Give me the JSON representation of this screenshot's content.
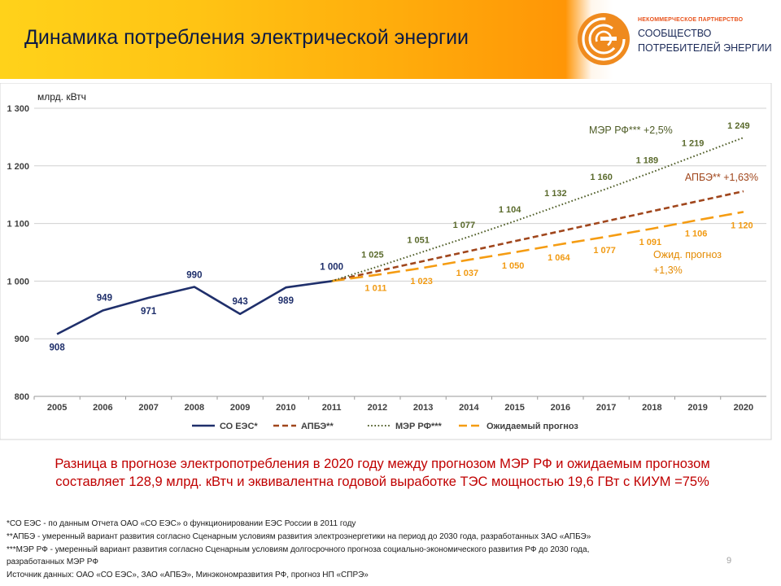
{
  "header": {
    "title": "Динамика потребления электрической энергии",
    "org_small": "НЕКОММЕРЧЕСКОЕ ПАРТНЕРСТВО",
    "org_line1": "СООБЩЕСТВО",
    "org_line2": "ПОТРЕБИТЕЛЕЙ ЭНЕРГИИ",
    "logo_icon": "energy-ring-logo-icon"
  },
  "chart_data": {
    "type": "line",
    "ylabel": "млрд. кВтч",
    "ylim": [
      800,
      1300
    ],
    "yticks": [
      800,
      900,
      1000,
      1100,
      1200,
      1300
    ],
    "ytick_labels": [
      "800",
      "900",
      "1 000",
      "1 100",
      "1 200",
      "1 300"
    ],
    "categories": [
      "2005",
      "2006",
      "2007",
      "2008",
      "2009",
      "2010",
      "2011",
      "2012",
      "2013",
      "2014",
      "2015",
      "2016",
      "2017",
      "2018",
      "2019",
      "2020"
    ],
    "grid": "horizontal",
    "legend_position": "bottom",
    "series": [
      {
        "name": "СО ЕЭС*",
        "color": "#1f2f6b",
        "style": "solid",
        "x": [
          "2005",
          "2006",
          "2007",
          "2008",
          "2009",
          "2010",
          "2011"
        ],
        "values": [
          908,
          949,
          971,
          990,
          943,
          989,
          1000
        ],
        "labels": [
          "908",
          "949",
          "971",
          "990",
          "943",
          "989",
          "1 000"
        ]
      },
      {
        "name": "АПБЭ**",
        "color": "#a0461c",
        "style": "dashed",
        "x": [
          "2011",
          "2020"
        ],
        "values": [
          1000,
          1156
        ]
      },
      {
        "name": "МЭР РФ***",
        "color": "#4e5c26",
        "style": "dotted",
        "x": [
          "2011",
          "2012",
          "2013",
          "2014",
          "2015",
          "2016",
          "2017",
          "2018",
          "2019",
          "2020"
        ],
        "values": [
          1000,
          1025,
          1051,
          1077,
          1104,
          1132,
          1160,
          1189,
          1219,
          1249
        ],
        "labels": [
          "",
          "1 025",
          "1 051",
          "1 077",
          "1 104",
          "1 132",
          "1 160",
          "1 189",
          "1 219",
          "1 249"
        ]
      },
      {
        "name": "Ожидаемый прогноз",
        "color": "#f59c12",
        "style": "longdash",
        "x": [
          "2011",
          "2012",
          "2013",
          "2014",
          "2015",
          "2016",
          "2017",
          "2018",
          "2019",
          "2020"
        ],
        "values": [
          1000,
          1011,
          1023,
          1037,
          1050,
          1064,
          1077,
          1091,
          1106,
          1120
        ],
        "labels": [
          "",
          "1 011",
          "1 023",
          "1 037",
          "1 050",
          "1 064",
          "1 077",
          "1 091",
          "1 106",
          "1 120"
        ]
      }
    ],
    "annotations": [
      {
        "text": "МЭР РФ*** +2,5%",
        "color": "#4e5c26",
        "near": "МЭР РФ***"
      },
      {
        "text": "АПБЭ** +1,63%",
        "color": "#a0461c",
        "near": "АПБЭ**"
      },
      {
        "text": "Ожид. прогноз",
        "color": "#e48a00",
        "near": "Ожидаемый прогноз"
      },
      {
        "text": "+1,3%",
        "color": "#e48a00",
        "near": "Ожидаемый прогноз"
      }
    ]
  },
  "remark": {
    "line1": "Разница в прогнозе электропотребления  в 2020 году  между прогнозом МЭР РФ и ожидаемым прогнозом",
    "line2": "составляет 128,9 млрд. кВтч и эквивалентна годовой выработке ТЭС мощностью 19,6 ГВт с КИУМ =75%"
  },
  "footnotes": [
    "*СО ЕЭС - по данным Отчета ОАО «СО ЕЭС» о функционировании ЕЭС России в 2011 году",
    "**АПБЭ - умеренный вариант развития согласно Сценарным условиям развития электроэнергетики на период до 2030 года, разработанных ЗАО «АПБЭ»",
    "***МЭР РФ - умеренный вариант развития согласно Сценарным условиям долгосрочного прогноза социально-экономического развития РФ до 2030 года,",
    "разработанных МЭР РФ",
    "Источник данных: ОАО «СО ЕЭС», ЗАО «АПБЭ», Минэкономразвития РФ, прогноз НП «СПРЭ»"
  ],
  "page_number": "9"
}
